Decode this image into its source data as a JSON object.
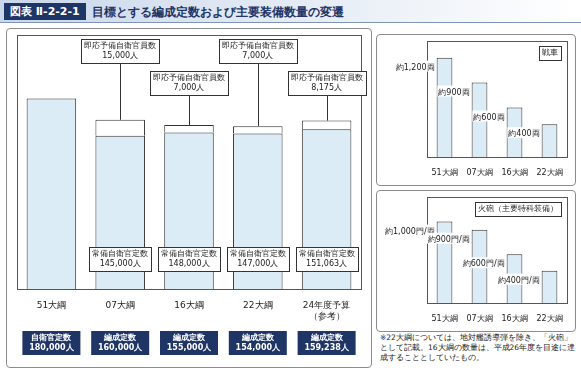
{
  "figure_label": "図表 Ⅱ-2-2-1",
  "title": "目標とする編成定数および主要装備数量の変遷",
  "note": "※22大綱については、地対艦誘導弾を除き、「火砲」として記載。16大綱の数量は、平成26年度を目途に達成することとしていたもの。",
  "chart_data": [
    {
      "type": "bar",
      "stacked": true,
      "categories": [
        "51大綱",
        "07大綱",
        "16大綱",
        "22大綱",
        [
          "24年度予算",
          "（参考）"
        ]
      ],
      "series": [
        {
          "name": "常備自衛官定数",
          "color": "#dcecf7",
          "values": [
            180000,
            145000,
            148000,
            147000,
            151063
          ],
          "value_labels": [
            null,
            "145,000人",
            "148,000人",
            "147,000人",
            "151,063人"
          ]
        },
        {
          "name": "即応予備自衛官員数",
          "color": "#ffffff",
          "values": [
            null,
            15000,
            7000,
            7000,
            8175
          ],
          "value_labels": [
            null,
            "15,000人",
            "7,000人",
            "7,000人",
            "8,175人"
          ]
        }
      ],
      "totals": {
        "names": [
          "自衛官定数",
          "編成定数",
          "編成定数",
          "編成定数",
          "編成定数"
        ],
        "values": [
          180000,
          160000,
          155000,
          154000,
          159238
        ],
        "value_labels": [
          "180,000人",
          "160,000人",
          "155,000人",
          "154,000人",
          "159,238人"
        ],
        "color": "#1f3566"
      },
      "ylim": [
        0,
        240000
      ],
      "tick_labels": "x",
      "grid": false,
      "data_labels": true
    },
    {
      "type": "bar",
      "title": "戦車",
      "categories": [
        "51大綱",
        "07大綱",
        "16大綱",
        "22大綱"
      ],
      "values": [
        1200,
        900,
        600,
        400
      ],
      "value_labels": [
        "約1,200両",
        "約900両",
        "約600両",
        "約400両"
      ],
      "color": "#dcecf7",
      "ylim": [
        0,
        1400
      ],
      "tick_labels": "x",
      "grid": false,
      "data_labels": true
    },
    {
      "type": "bar",
      "title": "火砲（主要特科装備）",
      "categories": [
        "51大綱",
        "07大綱",
        "16大綱",
        "22大綱"
      ],
      "values": [
        1000,
        900,
        600,
        400
      ],
      "value_labels": [
        "約1,000門/両",
        "約900門/両",
        "約600門/両",
        "約400門/両"
      ],
      "color": "#dcecf7",
      "ylim": [
        0,
        1300
      ],
      "tick_labels": "x",
      "grid": false,
      "data_labels": true
    }
  ]
}
